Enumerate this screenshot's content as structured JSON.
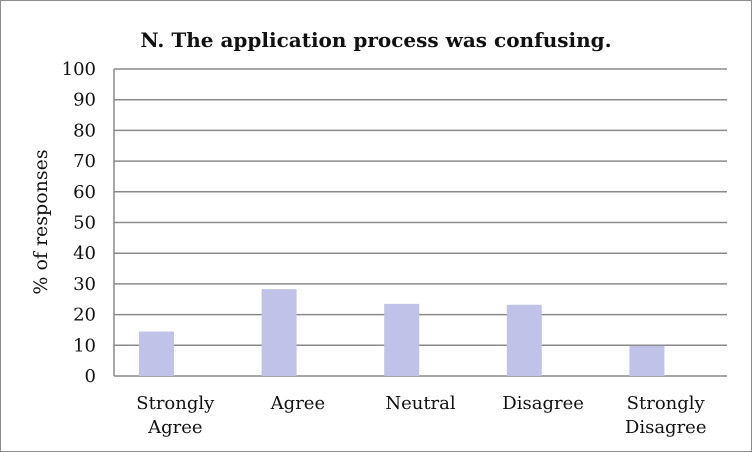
{
  "chart_data": {
    "type": "bar",
    "title": "N. The application process was confusing.",
    "xlabel": "",
    "ylabel": "% of responses",
    "categories": [
      "Strongly Agree",
      "Agree",
      "Neutral",
      "Disagree",
      "Strongly Disagree"
    ],
    "category_lines": [
      [
        "Strongly",
        "Agree"
      ],
      [
        "Agree"
      ],
      [
        "Neutral"
      ],
      [
        "Disagree"
      ],
      [
        "Strongly",
        "Disagree"
      ]
    ],
    "values": [
      14.5,
      28.3,
      23.5,
      23.2,
      9.8
    ],
    "ylim": [
      0,
      100
    ],
    "yticks": [
      0,
      10,
      20,
      30,
      40,
      50,
      60,
      70,
      80,
      90,
      100
    ],
    "grid": true,
    "legend": "none",
    "bar_color": "#c0c2e8",
    "grid_color": "#8a8a8a"
  }
}
